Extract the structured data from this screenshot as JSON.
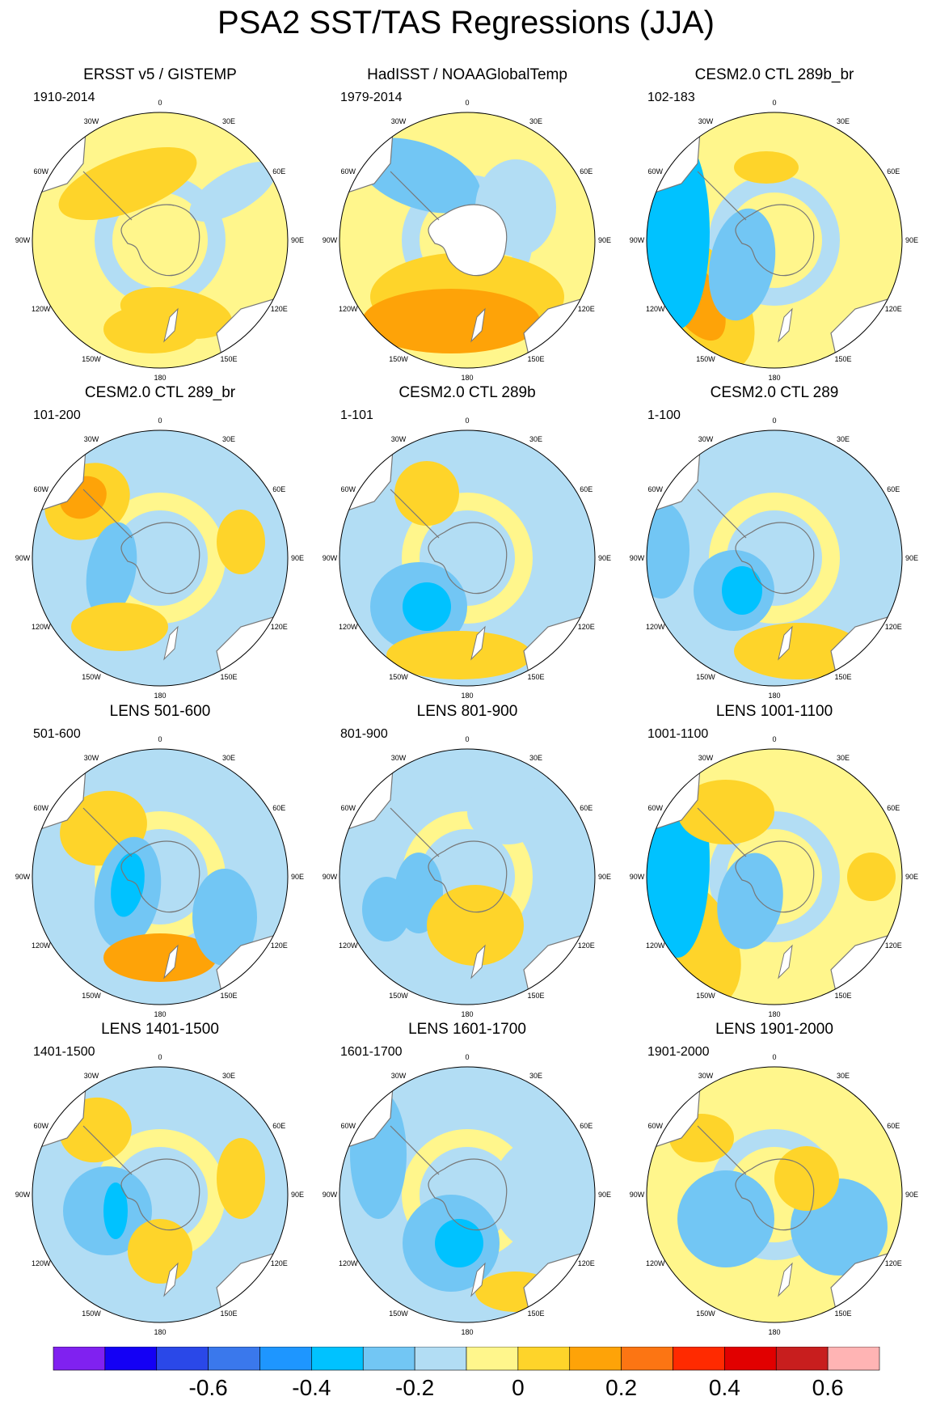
{
  "title": "PSA2 SST/TAS Regressions (JJA)",
  "lon_labels": [
    "0",
    "30E",
    "60E",
    "90E",
    "120E",
    "150E",
    "180",
    "150W",
    "120W",
    "90W",
    "60W",
    "30W"
  ],
  "panels": [
    {
      "title": "ERSST v5 / GISTEMP",
      "period": "1910-2014"
    },
    {
      "title": "HadISST / NOAAGlobalTemp",
      "period": "1979-2014"
    },
    {
      "title": "CESM2.0 CTL 289b_br",
      "period": "102-183"
    },
    {
      "title": "CESM2.0 CTL 289_br",
      "period": "101-200"
    },
    {
      "title": "CESM2.0 CTL 289b",
      "period": "1-101"
    },
    {
      "title": "CESM2.0 CTL 289",
      "period": "1-100"
    },
    {
      "title": "LENS 501-600",
      "period": "501-600"
    },
    {
      "title": "LENS 801-900",
      "period": "801-900"
    },
    {
      "title": "LENS 1001-1100",
      "period": "1001-1100"
    },
    {
      "title": "LENS 1401-1500",
      "period": "1401-1500"
    },
    {
      "title": "LENS 1601-1700",
      "period": "1601-1700"
    },
    {
      "title": "LENS 1901-2000",
      "period": "1901-2000"
    }
  ],
  "colorbar": {
    "colors": [
      "#8021f0",
      "#1400f5",
      "#2a48e8",
      "#3a78ec",
      "#1e96ff",
      "#00c2ff",
      "#72c6f4",
      "#b2ddf4",
      "#fff68c",
      "#fed42a",
      "#fea308",
      "#fc7513",
      "#ff2a00",
      "#e10000",
      "#c81e1e",
      "#ffb4b4"
    ],
    "labels": [
      "-0.6",
      "-0.4",
      "-0.2",
      "0",
      "0.2",
      "0.4",
      "0.6"
    ]
  },
  "palette": {
    "neutral_pos": "#fff68c",
    "neutral_neg": "#b2ddf4",
    "land": "#ffffff",
    "coast": "#777777"
  }
}
